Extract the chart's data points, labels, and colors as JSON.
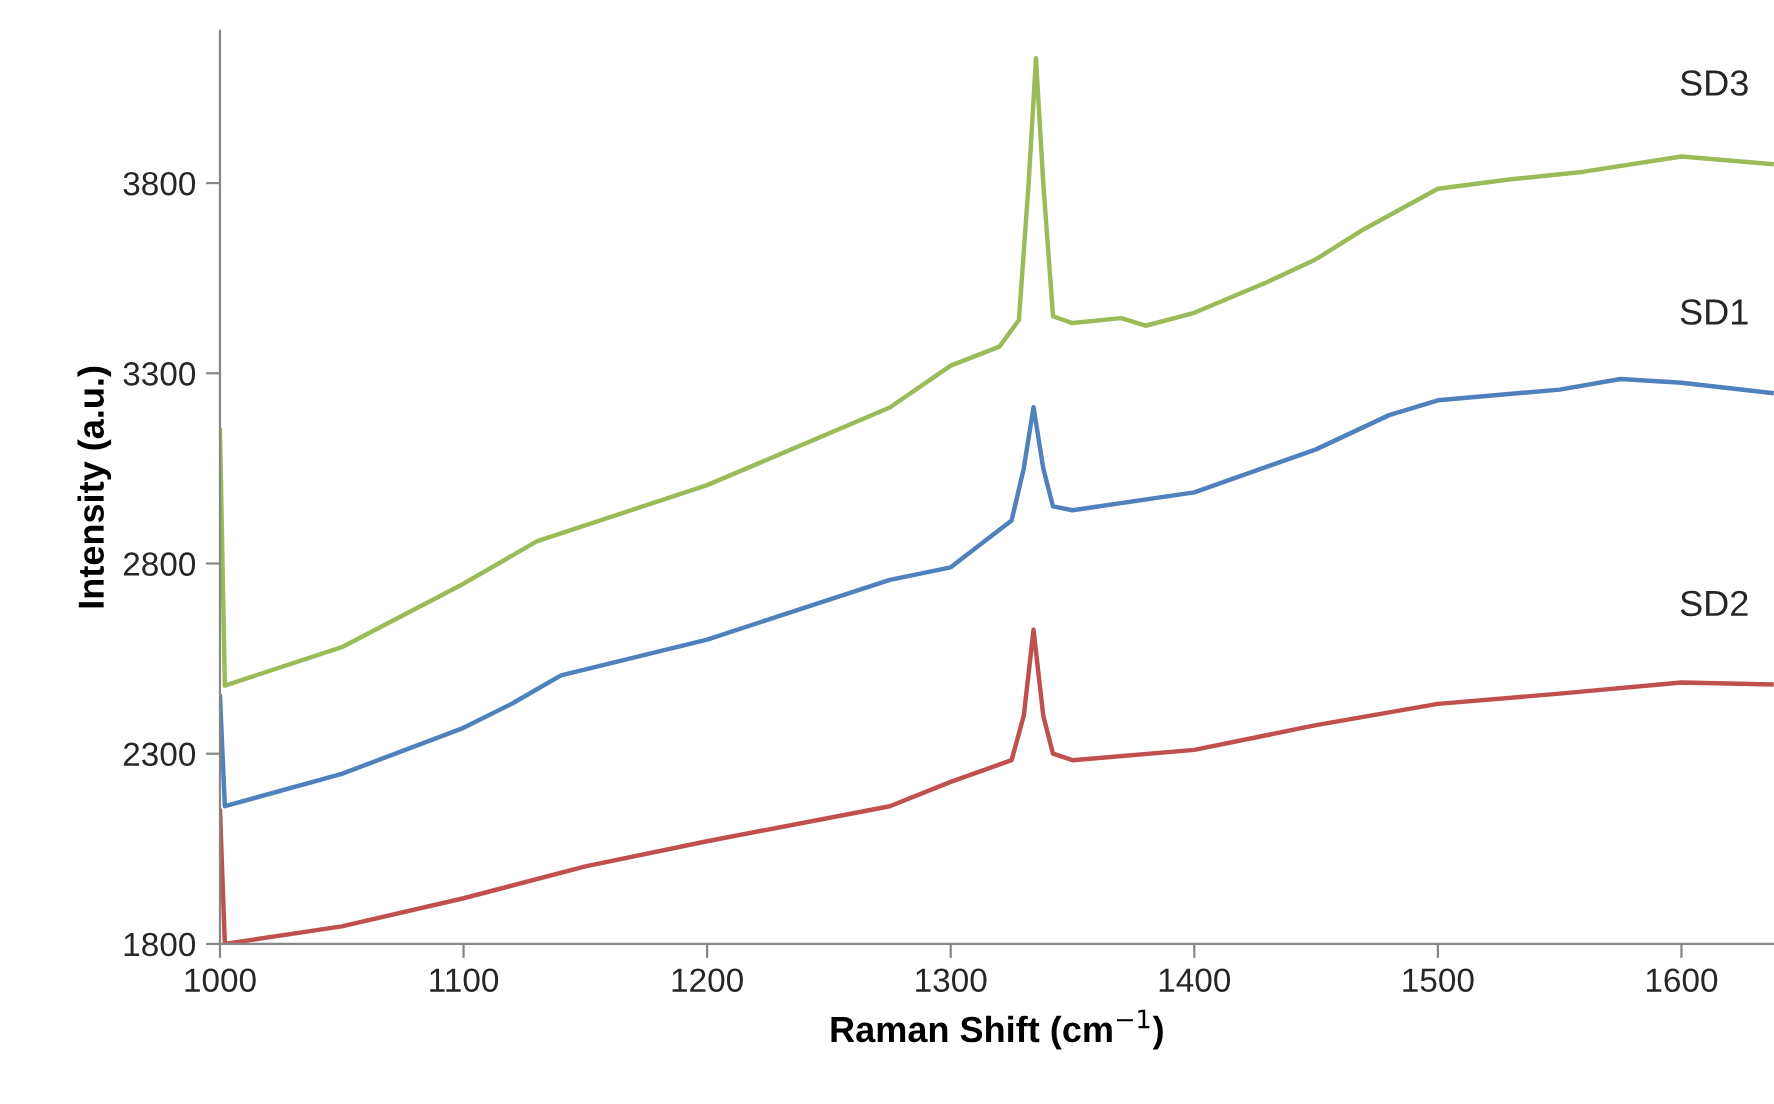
{
  "chart_data": {
    "type": "line",
    "xlabel": "Raman Shift (cm$^{−1}$)",
    "ylabel": "Intensity (a.u.)",
    "xlim": [
      1000,
      1638
    ],
    "ylim": [
      1800,
      4200
    ],
    "xticks": [
      1000,
      1100,
      1200,
      1300,
      1400,
      1500,
      1600
    ],
    "yticks": [
      1800,
      2300,
      2800,
      3300,
      3800
    ],
    "grid": false,
    "legend": false,
    "marker": "none",
    "line_style": "solid",
    "series": [
      {
        "name": "SD3",
        "color": "#9bbb59",
        "x": [
          1000,
          1002,
          1050,
          1100,
          1130,
          1200,
          1275,
          1300,
          1320,
          1328,
          1332,
          1335,
          1338,
          1342,
          1350,
          1370,
          1380,
          1400,
          1430,
          1450,
          1470,
          1500,
          1530,
          1560,
          1600,
          1637
        ],
        "values": [
          3150,
          2479,
          2580,
          2747,
          2858,
          3006,
          3210,
          3320,
          3370,
          3440,
          3800,
          4128,
          3800,
          3450,
          3432,
          3445,
          3425,
          3459,
          3540,
          3600,
          3680,
          3785,
          3810,
          3830,
          3870,
          3850
        ]
      },
      {
        "name": "SD1",
        "color": "#4f81bd",
        "x": [
          1000,
          1002,
          1050,
          1100,
          1120,
          1140,
          1200,
          1275,
          1300,
          1325,
          1330,
          1334,
          1338,
          1342,
          1350,
          1400,
          1450,
          1480,
          1500,
          1550,
          1575,
          1600,
          1637
        ],
        "values": [
          2450,
          2162,
          2247,
          2368,
          2432,
          2506,
          2600,
          2757,
          2790,
          2913,
          3050,
          3211,
          3050,
          2950,
          2940,
          2987,
          3100,
          3190,
          3229,
          3257,
          3285,
          3275,
          3248
        ]
      },
      {
        "name": "SD2",
        "color": "#c0504d",
        "x": [
          1000,
          1002,
          1050,
          1100,
          1150,
          1200,
          1275,
          1300,
          1325,
          1330,
          1334,
          1338,
          1342,
          1350,
          1400,
          1450,
          1500,
          1550,
          1600,
          1637
        ],
        "values": [
          2150,
          1800,
          1846,
          1920,
          2004,
          2070,
          2162,
          2226,
          2283,
          2400,
          2626,
          2400,
          2300,
          2283,
          2310,
          2375,
          2431,
          2458,
          2487,
          2482
        ]
      }
    ]
  }
}
